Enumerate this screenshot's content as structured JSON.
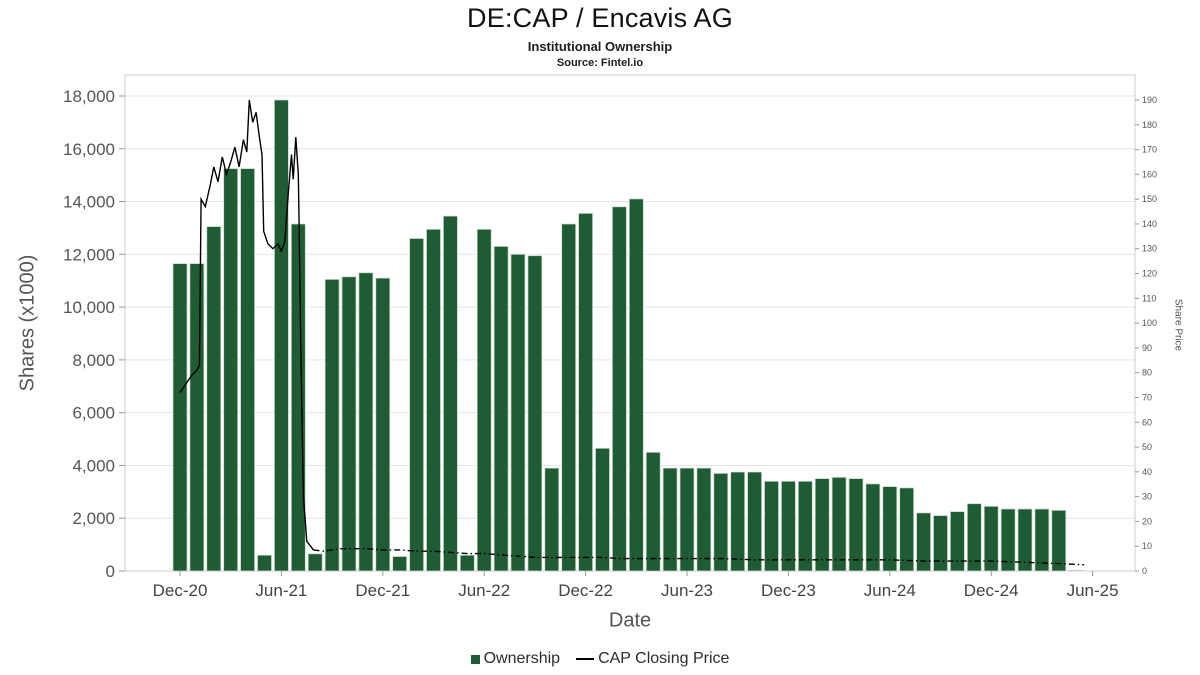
{
  "header": {
    "title": "DE:CAP / Encavis AG",
    "subtitle": "Institutional Ownership",
    "source": "Source: Fintel.io"
  },
  "axes": {
    "y_left_label": "Shares (x1000)",
    "y_right_label": "Share Price",
    "x_label": "Date",
    "y_left_ticks": [
      "0",
      "2,000",
      "4,000",
      "6,000",
      "8,000",
      "10,000",
      "12,000",
      "14,000",
      "16,000",
      "18,000"
    ],
    "y_right_ticks": [
      0,
      10,
      20,
      30,
      40,
      50,
      60,
      70,
      80,
      90,
      100,
      110,
      120,
      130,
      140,
      150,
      160,
      170,
      180,
      190
    ],
    "x_ticks": [
      "Dec-20",
      "Jun-21",
      "Dec-21",
      "Jun-22",
      "Dec-22",
      "Jun-23",
      "Dec-23",
      "Jun-24",
      "Dec-24",
      "Jun-25"
    ]
  },
  "legend": {
    "ownership_label": "Ownership",
    "price_label": "CAP Closing Price"
  },
  "colors": {
    "bar": "#1f5c33",
    "bar_edge": "#cfd8cf",
    "line": "#000000",
    "grid": "#e4e4e4",
    "border": "#cccccc",
    "tick_text": "#555555"
  },
  "chart_data": {
    "type": "bar",
    "title": "DE:CAP / Encavis AG — Institutional Ownership",
    "xlabel": "Date",
    "ylabel_left": "Shares (x1000)",
    "ylabel_right": "Share Price",
    "grid": "horizontal",
    "legend_position": "bottom",
    "ylim_left": [
      0,
      18000
    ],
    "ylim_right": [
      0,
      190
    ],
    "categories": [
      "Dec-20",
      "Jan-21",
      "Feb-21",
      "Mar-21",
      "Apr-21",
      "May-21",
      "Jun-21",
      "Jul-21",
      "Aug-21",
      "Sep-21",
      "Oct-21",
      "Nov-21",
      "Dec-21",
      "Jan-22",
      "Feb-22",
      "Mar-22",
      "Apr-22",
      "May-22",
      "Jun-22",
      "Jul-22",
      "Aug-22",
      "Sep-22",
      "Oct-22",
      "Nov-22",
      "Dec-22",
      "Jan-23",
      "Feb-23",
      "Mar-23",
      "Apr-23",
      "May-23",
      "Jun-23",
      "Jul-23",
      "Aug-23",
      "Sep-23",
      "Oct-23",
      "Nov-23",
      "Dec-23",
      "Jan-24",
      "Feb-24",
      "Mar-24",
      "Apr-24",
      "May-24",
      "Jun-24",
      "Jul-24",
      "Aug-24",
      "Sep-24",
      "Oct-24",
      "Nov-24",
      "Dec-24",
      "Jan-25",
      "Feb-25",
      "Mar-25",
      "Apr-25",
      "May-25"
    ],
    "series": [
      {
        "name": "Ownership",
        "type": "bar",
        "axis": "left",
        "values": [
          11650,
          11650,
          13050,
          15250,
          15250,
          600,
          17850,
          13150,
          650,
          11050,
          11150,
          11300,
          11100,
          550,
          12600,
          12950,
          13450,
          600,
          12950,
          12300,
          12000,
          11950,
          3900,
          13150,
          13550,
          4650,
          13800,
          14100,
          4500,
          3900,
          3900,
          3900,
          3700,
          3750,
          3750,
          3400,
          3400,
          3400,
          3500,
          3550,
          3500,
          3300,
          3200,
          3150,
          2200,
          2100,
          2250,
          2550,
          2450,
          2350,
          2350,
          2350,
          2300,
          30
        ]
      },
      {
        "name": "CAP Closing Price",
        "type": "line",
        "axis": "right",
        "segments": [
          {
            "style": "solid",
            "points": [
              [
                0,
                72
              ],
              [
                0.3,
                75
              ],
              [
                0.7,
                79
              ],
              [
                1.0,
                81
              ],
              [
                1.15,
                83
              ],
              [
                1.25,
                150
              ],
              [
                1.5,
                147
              ],
              [
                1.8,
                156
              ],
              [
                2.0,
                163
              ],
              [
                2.25,
                157
              ],
              [
                2.5,
                167
              ],
              [
                2.75,
                160
              ],
              [
                3.0,
                165
              ],
              [
                3.25,
                171
              ],
              [
                3.5,
                163
              ],
              [
                3.75,
                174
              ],
              [
                3.95,
                169
              ],
              [
                4.1,
                190
              ],
              [
                4.3,
                181
              ],
              [
                4.5,
                185
              ],
              [
                4.7,
                175
              ],
              [
                4.85,
                168
              ],
              [
                4.95,
                137
              ],
              [
                5.2,
                132
              ],
              [
                5.5,
                130
              ],
              [
                5.8,
                132
              ],
              [
                6.0,
                129
              ],
              [
                6.2,
                133
              ],
              [
                6.4,
                152
              ],
              [
                6.6,
                168
              ],
              [
                6.7,
                158
              ],
              [
                6.85,
                175
              ],
              [
                7.0,
                160
              ],
              [
                7.05,
                140
              ],
              [
                7.15,
                90
              ],
              [
                7.3,
                30
              ],
              [
                7.5,
                12
              ],
              [
                7.9,
                8.5
              ]
            ]
          },
          {
            "style": "dash-dot",
            "points": [
              [
                7.9,
                8.5
              ],
              [
                8.5,
                8
              ],
              [
                9,
                8.5
              ],
              [
                9.5,
                9
              ],
              [
                10,
                9
              ],
              [
                10.5,
                9
              ],
              [
                11,
                9
              ],
              [
                12,
                8.5
              ],
              [
                13,
                8.5
              ],
              [
                14,
                8
              ],
              [
                15,
                8
              ],
              [
                16,
                7.5
              ],
              [
                17,
                7
              ],
              [
                18,
                7
              ],
              [
                19,
                6.5
              ],
              [
                20,
                6
              ],
              [
                21,
                5.5
              ],
              [
                22,
                5.5
              ],
              [
                23,
                5.5
              ],
              [
                24,
                5.5
              ],
              [
                25,
                5.5
              ],
              [
                26,
                5
              ],
              [
                28,
                5
              ],
              [
                30,
                5
              ],
              [
                32,
                5
              ],
              [
                34,
                4.5
              ],
              [
                36,
                4.5
              ],
              [
                38,
                4.5
              ],
              [
                40,
                4.5
              ],
              [
                42,
                4.5
              ],
              [
                44,
                4
              ],
              [
                46,
                4
              ],
              [
                48,
                4
              ],
              [
                50,
                3.5
              ],
              [
                52,
                3
              ],
              [
                53.5,
                2.5
              ]
            ]
          }
        ]
      }
    ]
  }
}
